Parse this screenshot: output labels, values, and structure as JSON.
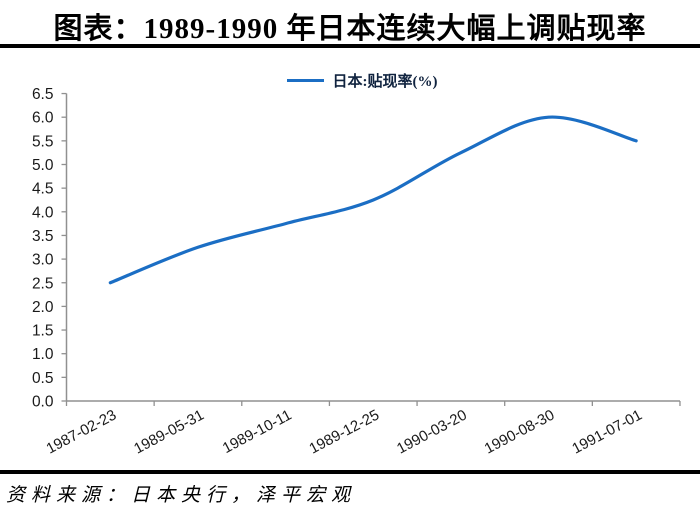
{
  "title": "图表：1989-1990 年日本连续大幅上调贴现率",
  "source": "资料来源：日本央行，泽平宏观",
  "chart_data": {
    "type": "line",
    "title": "图表：1989-1990 年日本连续大幅上调贴现率",
    "categories": [
      "1987-02-23",
      "1989-05-31",
      "1989-10-11",
      "1989-12-25",
      "1990-03-20",
      "1990-08-30",
      "1991-07-01"
    ],
    "series": [
      {
        "name": "日本:贴现率(%)",
        "values": [
          2.5,
          3.25,
          3.75,
          4.25,
          5.25,
          6.0,
          5.5
        ]
      }
    ],
    "xlabel": "",
    "ylabel": "",
    "ylim": [
      0,
      6.5
    ],
    "ytick_step": 0.5,
    "ytick_labels": [
      "0.0",
      "0.5",
      "1.0",
      "1.5",
      "2.0",
      "2.5",
      "3.0",
      "3.5",
      "4.0",
      "4.5",
      "5.0",
      "5.5",
      "6.0",
      "6.5"
    ],
    "grid": false,
    "smooth": true,
    "legend_position": "top-center",
    "line_color": "#1B6EC4",
    "axis_color": "#909090",
    "tick_label_color": "#1a1a1a",
    "source_note": "资料来源：日本央行，泽平宏观"
  }
}
